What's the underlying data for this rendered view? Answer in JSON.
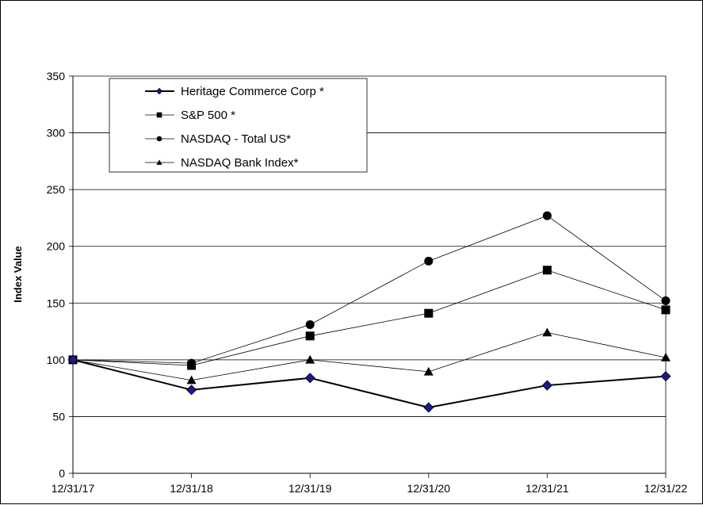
{
  "chart_data": {
    "type": "line",
    "title": "",
    "xlabel": "",
    "ylabel": "Index Value",
    "ylim": [
      0,
      350
    ],
    "yticks": [
      0,
      50,
      100,
      150,
      200,
      250,
      300,
      350
    ],
    "categories": [
      "12/31/17",
      "12/31/18",
      "12/31/19",
      "12/31/20",
      "12/31/21",
      "12/31/22"
    ],
    "grid": true,
    "legend_position": "top-left",
    "series": [
      {
        "name": "Heritage Commerce Corp *",
        "marker": "diamond",
        "color": "#000000",
        "marker_color": "#1a1a8c",
        "stroke_width": 2,
        "values": [
          100,
          73.5,
          84,
          58,
          77.5,
          85.5
        ]
      },
      {
        "name": "S&P 500 *",
        "marker": "square",
        "color": "#000000",
        "marker_color": "#000000",
        "stroke_width": 0.8,
        "values": [
          100,
          95,
          121,
          141,
          179,
          144
        ]
      },
      {
        "name": "NASDAQ - Total US*",
        "marker": "circle",
        "color": "#000000",
        "marker_color": "#000000",
        "stroke_width": 0.8,
        "values": [
          100,
          97,
          131,
          187,
          227,
          152
        ]
      },
      {
        "name": "NASDAQ Bank Index*",
        "marker": "triangle",
        "color": "#000000",
        "marker_color": "#000000",
        "stroke_width": 0.8,
        "values": [
          100,
          82,
          100,
          89.5,
          124,
          102
        ]
      }
    ]
  }
}
